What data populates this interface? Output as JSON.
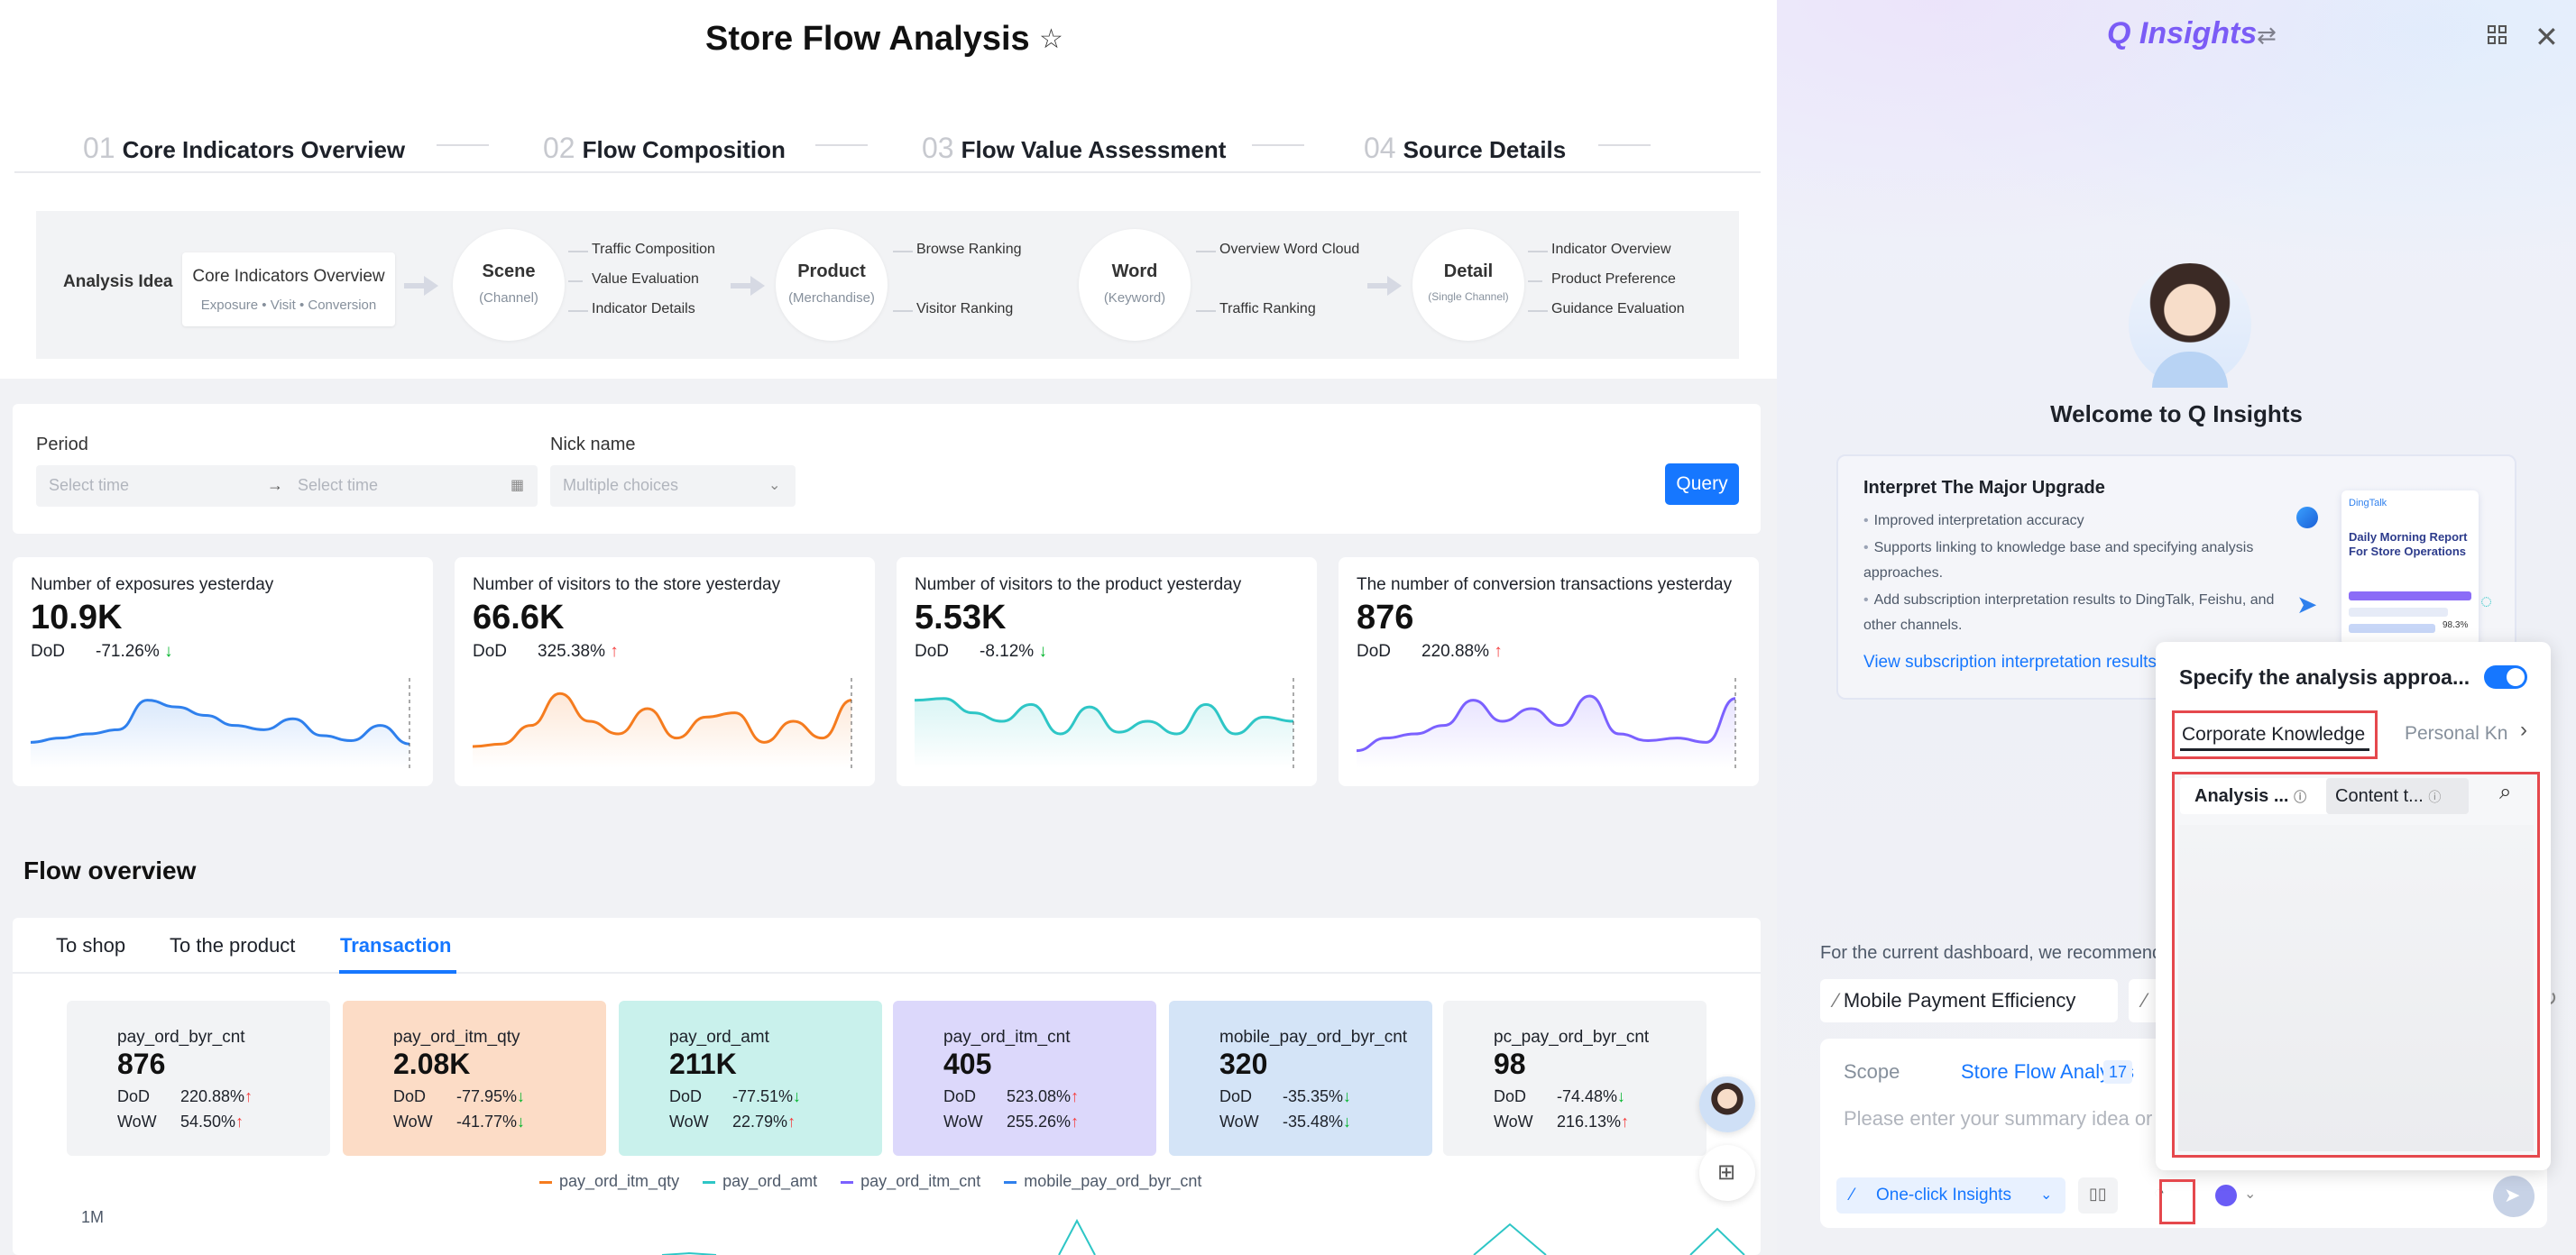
{
  "page": {
    "title": "Store Flow Analysis"
  },
  "steps": [
    {
      "num": "01",
      "label": "Core Indicators Overview"
    },
    {
      "num": "02",
      "label": "Flow Composition"
    },
    {
      "num": "03",
      "label": "Flow Value Assessment"
    },
    {
      "num": "04",
      "label": "Source Details"
    }
  ],
  "idea": {
    "label": "Analysis Idea",
    "box": {
      "title": "Core Indicators Overview",
      "sub": "Exposure • Visit • Conversion"
    },
    "nodes": [
      {
        "title": "Scene",
        "sub": "(Channel)",
        "items": [
          "Traffic Composition",
          "Value Evaluation",
          "Indicator Details"
        ]
      },
      {
        "title": "Product",
        "sub": "(Merchandise)",
        "items": [
          "Browse Ranking",
          "Visitor Ranking"
        ]
      },
      {
        "title": "Word",
        "sub": "(Keyword)",
        "items": [
          "Overview Word Cloud",
          "Traffic Ranking"
        ]
      },
      {
        "title": "Detail",
        "sub": "(Single Channel)",
        "items": [
          "Indicator Overview",
          "Product Preference",
          "Guidance Evaluation"
        ]
      }
    ]
  },
  "filter": {
    "period_label": "Period",
    "start_placeholder": "Select time",
    "end_placeholder": "Select time",
    "nick_label": "Nick name",
    "nick_placeholder": "Multiple choices",
    "query": "Query"
  },
  "kpis": [
    {
      "title": "Number of exposures yesterday",
      "value": "10.9K",
      "dod_label": "DoD",
      "dod": "-71.26%",
      "dir": "down",
      "color": "#2f80ed",
      "trend": [
        20,
        25,
        30,
        35,
        70,
        62,
        52,
        40,
        35,
        48,
        28,
        22,
        40,
        18
      ]
    },
    {
      "title": "Number of visitors to the store yesterday",
      "value": "66.6K",
      "dod_label": "DoD",
      "dod": "325.38%",
      "dir": "up",
      "color": "#f57c1f",
      "trend": [
        15,
        18,
        40,
        78,
        45,
        30,
        60,
        25,
        50,
        55,
        20,
        45,
        25,
        70
      ]
    },
    {
      "title": "Number of visitors to the product yesterday",
      "value": "5.53K",
      "dod_label": "DoD",
      "dod": "-8.12%",
      "dir": "down",
      "color": "#2ec6c6",
      "trend": [
        70,
        72,
        55,
        45,
        65,
        30,
        62,
        32,
        45,
        30,
        65,
        30,
        50,
        45
      ]
    },
    {
      "title": "The number of conversion transactions yesterday",
      "value": "876",
      "dod_label": "DoD",
      "dod": "220.88%",
      "dir": "up",
      "color": "#7b61ff",
      "trend": [
        10,
        25,
        30,
        40,
        70,
        45,
        60,
        40,
        75,
        30,
        22,
        25,
        20,
        72
      ]
    }
  ],
  "flow": {
    "title": "Flow overview",
    "tabs": [
      "To shop",
      "To the product",
      "Transaction"
    ],
    "active_tab": "Transaction",
    "cards": [
      {
        "name": "pay_ord_byr_cnt",
        "value": "876",
        "dod": "220.88%",
        "dod_dir": "up",
        "wow": "54.50%",
        "wow_dir": "up",
        "bg": "#f2f3f5"
      },
      {
        "name": "pay_ord_itm_qty",
        "value": "2.08K",
        "dod": "-77.95%",
        "dod_dir": "down",
        "wow": "-41.77%",
        "wow_dir": "down",
        "bg": "#fcdcc6"
      },
      {
        "name": "pay_ord_amt",
        "value": "211K",
        "dod": "-77.51%",
        "dod_dir": "down",
        "wow": "22.79%",
        "wow_dir": "up",
        "bg": "#c9f1ec"
      },
      {
        "name": "pay_ord_itm_cnt",
        "value": "405",
        "dod": "523.08%",
        "dod_dir": "up",
        "wow": "255.26%",
        "wow_dir": "up",
        "bg": "#dcd8fb"
      },
      {
        "name": "mobile_pay_ord_byr_cnt",
        "value": "320",
        "dod": "-35.35%",
        "dod_dir": "down",
        "wow": "-35.48%",
        "wow_dir": "down",
        "bg": "#d4e4f7"
      },
      {
        "name": "pc_pay_ord_byr_cnt",
        "value": "98",
        "dod": "-74.48%",
        "dod_dir": "down",
        "wow": "216.13%",
        "wow_dir": "up",
        "bg": "#f2f3f5"
      }
    ],
    "dod_label": "DoD",
    "wow_label": "WoW",
    "legend": [
      {
        "name": "pay_ord_itm_qty",
        "color": "#f57c1f"
      },
      {
        "name": "pay_ord_amt",
        "color": "#2ec6c6"
      },
      {
        "name": "pay_ord_itm_cnt",
        "color": "#7b61ff"
      },
      {
        "name": "mobile_pay_ord_byr_cnt",
        "color": "#2f80ed"
      }
    ],
    "y_top": "1M"
  },
  "assistant": {
    "logo": "Q Insights",
    "welcome": "Welcome to Q Insights",
    "upgrade": {
      "title": "Interpret The Major Upgrade",
      "items": [
        "Improved interpretation accuracy",
        "Supports linking to knowledge base and specifying analysis approaches.",
        "Add subscription interpretation results to DingTalk, Feishu, and other channels."
      ],
      "link": "View subscription interpretation results",
      "report_brand": "DingTalk",
      "report_title": "Daily Morning Report For Store Operations",
      "report_pct": "98.3%"
    },
    "recommend": "For the current dashboard, we recommend",
    "chip1": "Mobile Payment Efficiency",
    "scope_label": "Scope",
    "scope_value": "Store Flow Analysis",
    "scope_count": "17",
    "placeholder": "Please enter your summary idea or",
    "oneclick": "One-click Insights"
  },
  "popup": {
    "title": "Specify the analysis approa...",
    "tab_active": "Corporate Knowledge",
    "tab_other": "Personal Kn",
    "seg1": "Analysis ...",
    "seg2": "Content t..."
  }
}
